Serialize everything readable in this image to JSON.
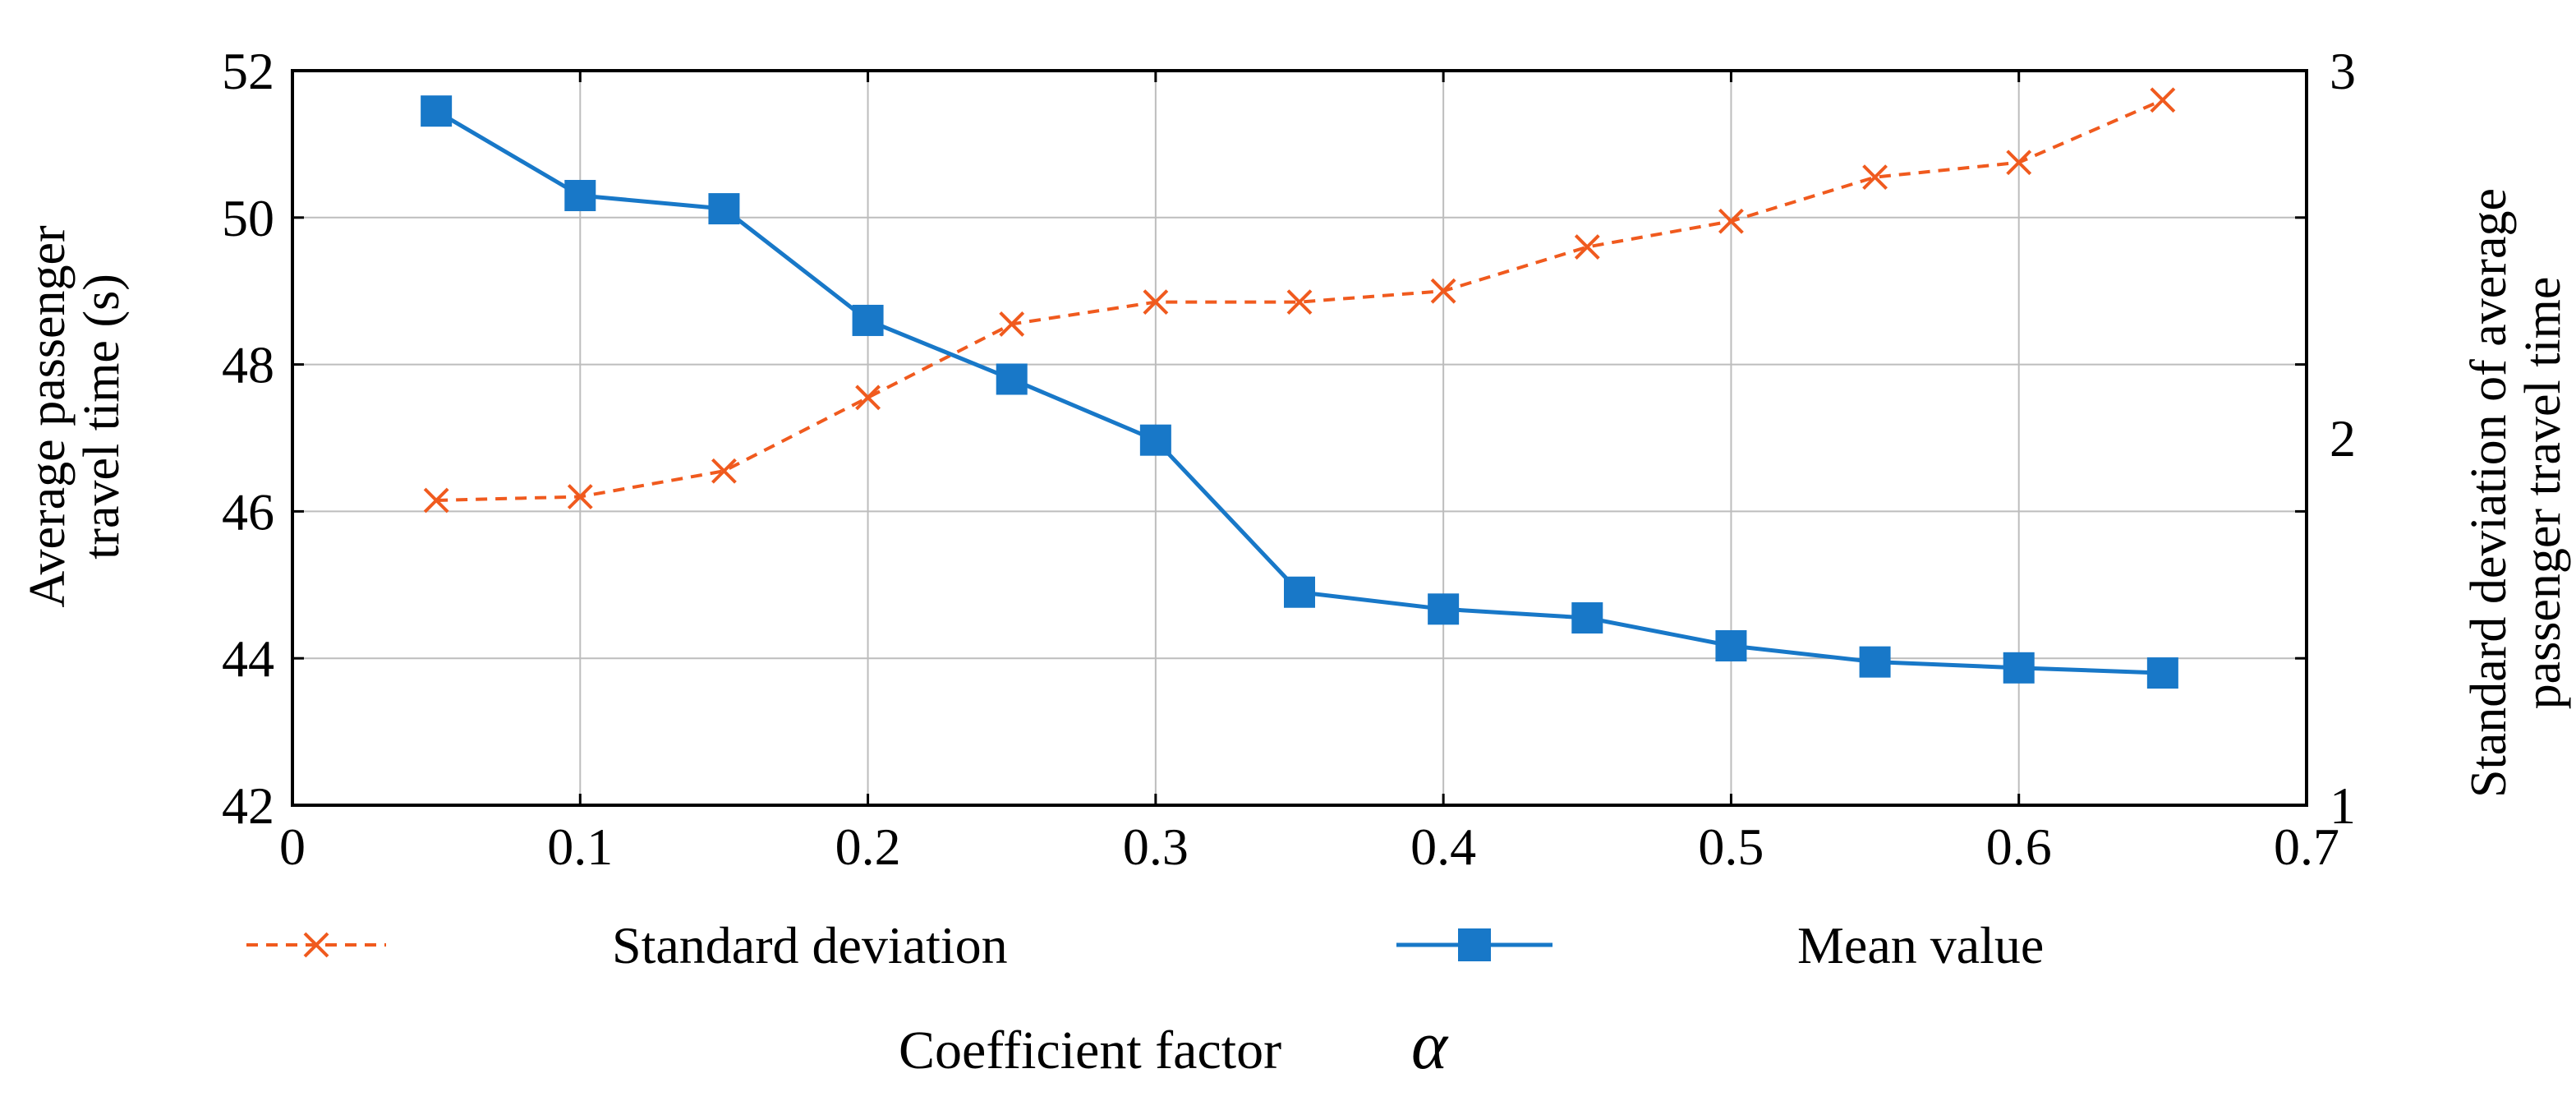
{
  "chart_data": {
    "type": "line",
    "title": "",
    "xlabel": "Coefficient factor",
    "xlabel_symbol": "α",
    "ylabel": [
      "Average passenger",
      "travel time (s)"
    ],
    "y2label": [
      "Standard deviation of average",
      "passenger travel time"
    ],
    "xlim": [
      0,
      0.7
    ],
    "ylim": [
      42,
      52
    ],
    "y2lim": [
      1,
      3
    ],
    "xticks": [
      "0",
      "0.1",
      "0.2",
      "0.3",
      "0.4",
      "0.5",
      "0.6",
      "0.7"
    ],
    "yticks": [
      "42",
      "44",
      "46",
      "48",
      "50",
      "52"
    ],
    "y2ticks": [
      "1",
      "2",
      "3"
    ],
    "grid": true,
    "legend_position": "bottom",
    "x": [
      0.05,
      0.1,
      0.15,
      0.2,
      0.25,
      0.3,
      0.35,
      0.4,
      0.45,
      0.5,
      0.55,
      0.6,
      0.65
    ],
    "series": [
      {
        "name": "Standard deviation",
        "axis": "right",
        "marker": "x",
        "line_style": "dashed",
        "color": "#F05A1E",
        "values": [
          1.83,
          1.84,
          1.91,
          2.11,
          2.31,
          2.37,
          2.37,
          2.4,
          2.52,
          2.59,
          2.71,
          2.75,
          2.92
        ]
      },
      {
        "name": "Mean value",
        "axis": "left",
        "marker": "square",
        "line_style": "solid",
        "color": "#1878C8",
        "values": [
          51.45,
          50.3,
          50.12,
          48.6,
          47.8,
          46.97,
          44.9,
          44.67,
          44.55,
          44.17,
          43.95,
          43.87,
          43.8
        ]
      }
    ]
  }
}
